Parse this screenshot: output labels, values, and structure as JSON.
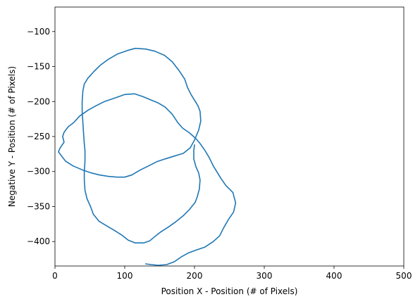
{
  "chart_data": {
    "type": "line",
    "xlabel": "Position X - Position (# of Pixels)",
    "ylabel": "Negative Y - Position (# of Pixels)",
    "xlim": [
      0,
      500
    ],
    "ylim": [
      -435,
      -65
    ],
    "xticks": [
      0,
      100,
      200,
      300,
      400,
      500
    ],
    "yticks": [
      -100,
      -150,
      -200,
      -250,
      -300,
      -350,
      -400
    ],
    "grid": false,
    "series": [
      {
        "color": "#1f77b4",
        "points": [
          [
            200,
            -262
          ],
          [
            199,
            -270
          ],
          [
            199,
            -282
          ],
          [
            202,
            -293
          ],
          [
            206,
            -302
          ],
          [
            208,
            -312
          ],
          [
            207,
            -325
          ],
          [
            204,
            -336
          ],
          [
            201,
            -344
          ],
          [
            193,
            -354
          ],
          [
            184,
            -363
          ],
          [
            173,
            -372
          ],
          [
            163,
            -379
          ],
          [
            152,
            -386
          ],
          [
            143,
            -393
          ],
          [
            136,
            -399
          ],
          [
            127,
            -402
          ],
          [
            115,
            -402
          ],
          [
            105,
            -398
          ],
          [
            96,
            -391
          ],
          [
            85,
            -384
          ],
          [
            73,
            -377
          ],
          [
            63,
            -371
          ],
          [
            55,
            -361
          ],
          [
            51,
            -350
          ],
          [
            46,
            -339
          ],
          [
            43,
            -327
          ],
          [
            42,
            -312
          ],
          [
            42,
            -300
          ],
          [
            43,
            -285
          ],
          [
            43,
            -270
          ],
          [
            42,
            -260
          ],
          [
            41,
            -246
          ],
          [
            40,
            -230
          ],
          [
            39,
            -215
          ],
          [
            39,
            -200
          ],
          [
            40,
            -185
          ],
          [
            42,
            -175
          ],
          [
            47,
            -167
          ],
          [
            56,
            -157
          ],
          [
            65,
            -148
          ],
          [
            76,
            -140
          ],
          [
            90,
            -132
          ],
          [
            104,
            -127
          ],
          [
            115,
            -124
          ],
          [
            130,
            -125
          ],
          [
            143,
            -128
          ],
          [
            157,
            -134
          ],
          [
            168,
            -143
          ],
          [
            178,
            -156
          ],
          [
            186,
            -168
          ],
          [
            190,
            -180
          ],
          [
            195,
            -190
          ],
          [
            200,
            -198
          ],
          [
            205,
            -206
          ],
          [
            208,
            -214
          ],
          [
            209,
            -228
          ],
          [
            206,
            -241
          ],
          [
            200,
            -255
          ],
          [
            194,
            -266
          ],
          [
            184,
            -274
          ],
          [
            171,
            -278
          ],
          [
            158,
            -282
          ],
          [
            146,
            -286
          ],
          [
            134,
            -292
          ],
          [
            122,
            -298
          ],
          [
            110,
            -305
          ],
          [
            100,
            -308
          ],
          [
            89,
            -308
          ],
          [
            77,
            -307
          ],
          [
            64,
            -305
          ],
          [
            52,
            -302
          ],
          [
            40,
            -298
          ],
          [
            26,
            -292
          ],
          [
            15,
            -285
          ],
          [
            5,
            -272
          ],
          [
            7,
            -267
          ],
          [
            13,
            -258
          ],
          [
            11,
            -250
          ],
          [
            13,
            -244
          ],
          [
            19,
            -236
          ],
          [
            27,
            -230
          ],
          [
            35,
            -221
          ],
          [
            48,
            -212
          ],
          [
            59,
            -206
          ],
          [
            71,
            -200
          ],
          [
            86,
            -195
          ],
          [
            100,
            -190
          ],
          [
            114,
            -189
          ],
          [
            126,
            -193
          ],
          [
            138,
            -198
          ],
          [
            148,
            -202
          ],
          [
            158,
            -208
          ],
          [
            168,
            -218
          ],
          [
            176,
            -230
          ],
          [
            183,
            -238
          ],
          [
            193,
            -245
          ],
          [
            202,
            -253
          ],
          [
            208,
            -260
          ],
          [
            215,
            -270
          ],
          [
            221,
            -280
          ],
          [
            227,
            -292
          ],
          [
            233,
            -302
          ],
          [
            238,
            -310
          ],
          [
            245,
            -320
          ],
          [
            255,
            -330
          ],
          [
            259,
            -345
          ],
          [
            256,
            -358
          ],
          [
            249,
            -368
          ],
          [
            242,
            -380
          ],
          [
            236,
            -392
          ],
          [
            227,
            -400
          ],
          [
            215,
            -408
          ],
          [
            203,
            -412
          ],
          [
            192,
            -416
          ],
          [
            181,
            -422
          ],
          [
            171,
            -429
          ],
          [
            160,
            -433
          ],
          [
            148,
            -434
          ],
          [
            138,
            -433
          ],
          [
            130,
            -432
          ]
        ]
      }
    ]
  }
}
